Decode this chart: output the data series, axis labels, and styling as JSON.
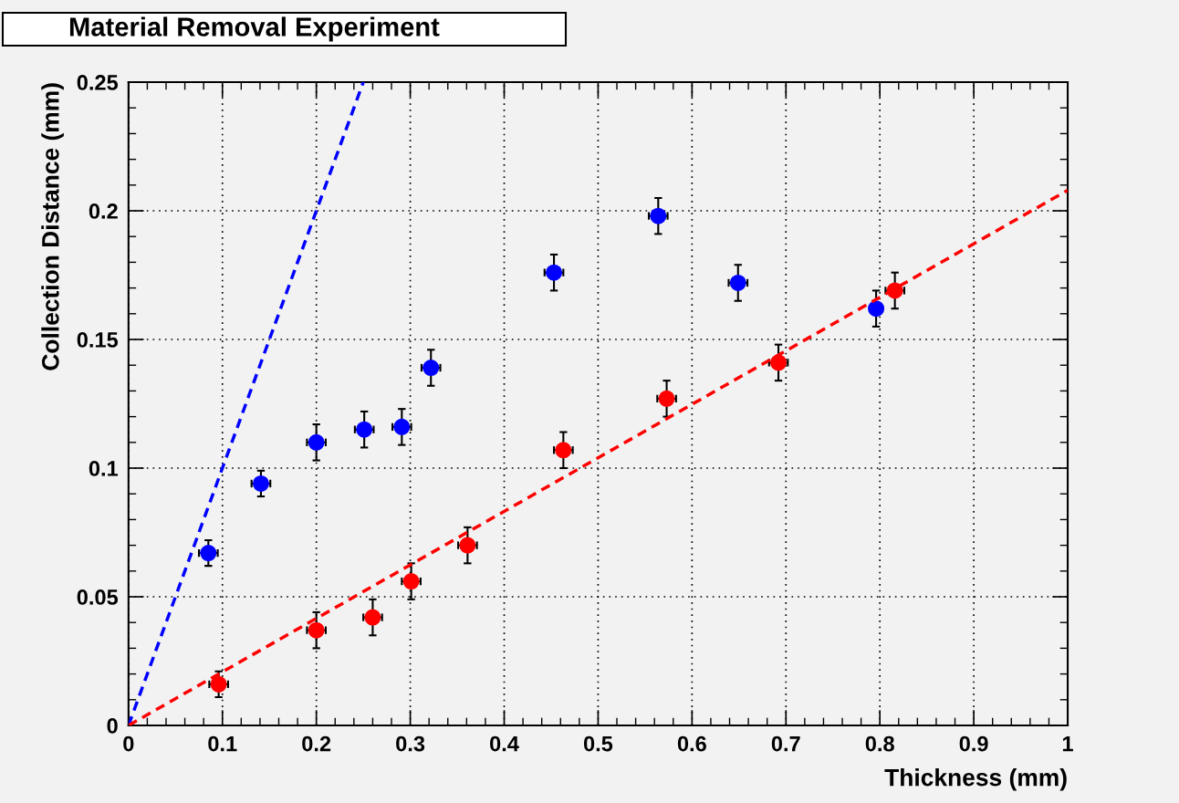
{
  "chart_data": {
    "type": "scatter",
    "title": "Material Removal Experiment",
    "xlabel": "Thickness (mm)",
    "ylabel": "Collection Distance (mm)",
    "xlim": [
      0,
      1
    ],
    "ylim": [
      0,
      0.25
    ],
    "xticks": [
      0,
      0.1,
      0.2,
      0.3,
      0.4,
      0.5,
      0.6,
      0.7,
      0.8,
      0.9,
      1
    ],
    "yticks": [
      0,
      0.05,
      0.1,
      0.15,
      0.2,
      0.25
    ],
    "grid": true,
    "legend": false,
    "series": [
      {
        "color": "#0000ff",
        "marker": "circle",
        "x": [
          0.085,
          0.141,
          0.2,
          0.251,
          0.291,
          0.322,
          0.453,
          0.564,
          0.649,
          0.796
        ],
        "values": [
          0.067,
          0.094,
          0.11,
          0.115,
          0.116,
          0.139,
          0.176,
          0.198,
          0.172,
          0.162
        ],
        "errors": [
          0.005,
          0.005,
          0.007,
          0.007,
          0.007,
          0.007,
          0.007,
          0.007,
          0.007,
          0.007
        ],
        "xerrors": [
          0.01,
          0.01,
          0.01,
          0.01,
          0.01,
          0.01,
          0.01,
          0.01,
          0.01,
          0.003
        ]
      },
      {
        "color": "#ff0000",
        "marker": "circle",
        "x": [
          0.096,
          0.2,
          0.26,
          0.301,
          0.361,
          0.463,
          0.573,
          0.692,
          0.816
        ],
        "values": [
          0.016,
          0.037,
          0.042,
          0.056,
          0.07,
          0.107,
          0.127,
          0.141,
          0.169
        ],
        "errors": [
          0.005,
          0.007,
          0.007,
          0.007,
          0.007,
          0.007,
          0.007,
          0.007,
          0.007
        ],
        "xerrors": [
          0.01,
          0.01,
          0.01,
          0.01,
          0.01,
          0.01,
          0.01,
          0.01,
          0.01
        ]
      },
      {
        "type": "line",
        "color": "#0000ff",
        "line_style": "dashed",
        "marker": "none",
        "x": [
          0,
          0.25
        ],
        "values": [
          0,
          0.25
        ]
      },
      {
        "type": "line",
        "color": "#ff0000",
        "line_style": "dashed",
        "marker": "none",
        "x": [
          0,
          1
        ],
        "values": [
          0,
          0.208
        ]
      }
    ]
  }
}
